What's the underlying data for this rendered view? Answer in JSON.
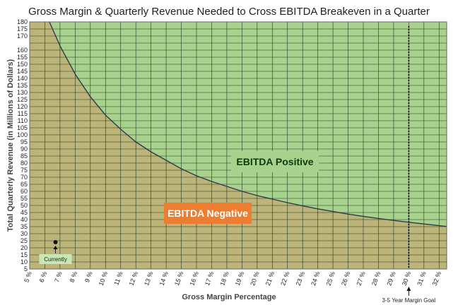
{
  "chart_data": {
    "type": "area",
    "title": "Gross Margin & Quarterly Revenue Needed to Cross EBITDA Breakeven in a Quarter",
    "xlabel": "Gross  Margin  Percentage",
    "ylabel": "Total Quarterly Revenue (in Millions of Dollars)",
    "xlim": [
      5,
      32.5
    ],
    "ylim": [
      5,
      180
    ],
    "x_ticks": [
      "5 %",
      "6 %",
      "7 %",
      "8 %",
      "9 %",
      "10 %",
      "11 %",
      "12 %",
      "13 %",
      "14 %",
      "15 %",
      "16 %",
      "17 %",
      "18 %",
      "19 %",
      "20 %",
      "21 %",
      "22 %",
      "23 %",
      "24 %",
      "25 %",
      "26 %",
      "27 %",
      "28 %",
      "29 %",
      "30 %",
      "31 %",
      "32 %"
    ],
    "y_ticks": [
      5,
      10,
      15,
      20,
      25,
      30,
      35,
      40,
      45,
      50,
      55,
      60,
      65,
      70,
      75,
      80,
      85,
      90,
      95,
      100,
      105,
      110,
      115,
      120,
      125,
      130,
      135,
      140,
      145,
      150,
      155,
      160,
      170,
      175,
      180
    ],
    "grid": true,
    "series": [
      {
        "x": [
          6.3,
          7,
          8,
          9,
          10,
          11,
          12,
          13,
          14,
          15,
          16,
          17,
          18,
          19,
          20,
          21,
          22,
          23,
          24,
          25,
          26,
          27,
          28,
          29,
          30,
          31,
          32,
          32.5
        ],
        "values": [
          180,
          163,
          143,
          127,
          114,
          104,
          95,
          88,
          82,
          76,
          71,
          67,
          63.5,
          60,
          57,
          54.5,
          52,
          49.7,
          47.6,
          45.7,
          43.9,
          42.3,
          40.8,
          39.4,
          38.1,
          36.9,
          35.7,
          35.1
        ]
      }
    ],
    "regions": {
      "above": {
        "label": "EBITDA Positive",
        "color": "#a9d18e"
      },
      "below": {
        "label": "EBITDA Negative",
        "color": "#bcb478"
      },
      "negative_label_bg": "#ed7d31"
    },
    "annotations": {
      "current_point": {
        "x": 6.7,
        "y": 24,
        "label": "Currently"
      },
      "goal_line": {
        "x": 30,
        "label": "3-5 Year Margin Goal"
      }
    },
    "colors": {
      "curve": "#2f3a4a",
      "grid": "#1f3a20",
      "positive_text": "#0b3d0b",
      "negative_text": "#ffffff"
    }
  }
}
